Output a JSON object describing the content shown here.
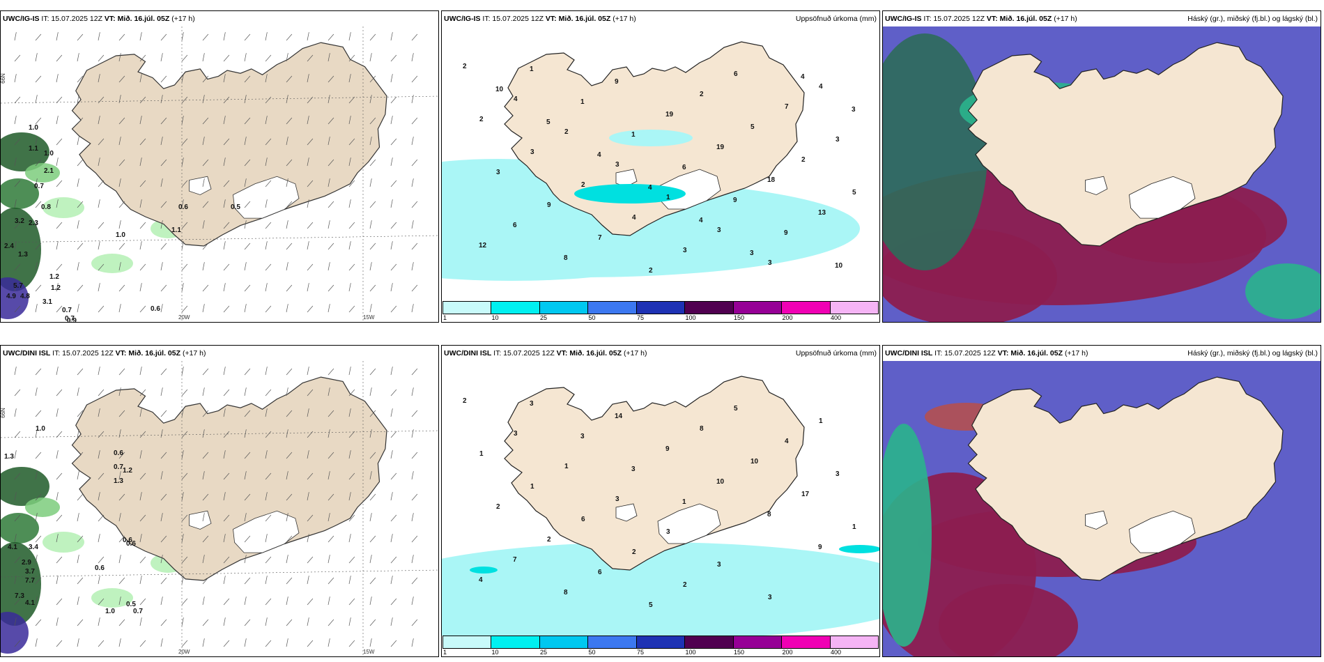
{
  "panels": [
    {
      "model": "UWC/IG-IS",
      "it": "IT: 15.07.2025 12Z",
      "vt_label": "VT:",
      "vt": "Mið. 16.júl. 05Z",
      "lead": "(+17 h)",
      "right": "",
      "kind": "wind"
    },
    {
      "model": "UWC/IG-IS",
      "it": "IT: 15.07.2025 12Z",
      "vt_label": "VT:",
      "vt": "Mið. 16.júl. 05Z",
      "lead": "(+17 h)",
      "right": "Uppsöfnuð úrkoma (mm)",
      "kind": "precip"
    },
    {
      "model": "UWC/IG-IS",
      "it": "IT: 15.07.2025 12Z",
      "vt_label": "VT:",
      "vt": "Mið. 16.júl. 05Z",
      "lead": "(+17 h)",
      "right": "Háský (gr.), miðský (fj.bl.) og lágský (bl.)",
      "kind": "cloud"
    },
    {
      "model": "UWC/DINI ISL",
      "it": "IT: 15.07.2025 12Z",
      "vt_label": "VT:",
      "vt": "Mið. 16.júl. 05Z",
      "lead": "(+17 h)",
      "right": "",
      "kind": "wind"
    },
    {
      "model": "UWC/DINI ISL",
      "it": "IT: 15.07.2025 12Z",
      "vt_label": "VT:",
      "vt": "Mið. 16.júl. 05Z",
      "lead": "(+17 h)",
      "right": "Uppsöfnuð úrkoma (mm)",
      "kind": "precip"
    },
    {
      "model": "UWC/DINI ISL",
      "it": "IT: 15.07.2025 12Z",
      "vt_label": "VT:",
      "vt": "Mið. 16.júl. 05Z",
      "lead": "(+17 h)",
      "right": "Háský (gr.), miðský (fj.bl.) og lágský (bl.)",
      "kind": "cloud"
    }
  ],
  "axis_labels": {
    "lon1": "20W",
    "lon2": "15W",
    "lat1": "66N",
    "lat2": "64N"
  },
  "precip_scale": {
    "labels": [
      "1",
      "10",
      "25",
      "50",
      "75",
      "100",
      "150",
      "200",
      "400"
    ],
    "colors": [
      "#c8fafa",
      "#00f0f0",
      "#00c8f0",
      "#3c78f0",
      "#1e32b4",
      "#500050",
      "#960096",
      "#f000b4",
      "#f5b4f5"
    ]
  },
  "wind_values": {
    "top": [
      "1.0",
      "1.1",
      "1.0",
      "2.1",
      "0.7",
      "0.8",
      "3.2",
      "2.3",
      "1.0",
      "2.4",
      "1.3",
      "1.2",
      "5.7",
      "1.2",
      "4.9",
      "4.8",
      "3.1",
      "0.7",
      "0.9",
      "0.7",
      "0.6",
      "0.6",
      "0.5",
      "1.1"
    ],
    "bottom": [
      "1.0",
      "1.3",
      "0.6",
      "0.7",
      "1.3",
      "1.2",
      "0.6",
      "4.1",
      "3.4",
      "2.9",
      "3.7",
      "7.7",
      "0.6",
      "7.3",
      "4.1",
      "0.6",
      "0.5",
      "1.0",
      "0.7"
    ]
  },
  "precip_values": {
    "top": [
      "2",
      "4",
      "2",
      "3",
      "1",
      "3",
      "3",
      "4",
      "2",
      "3",
      "2",
      "4",
      "3",
      "6",
      "7",
      "3",
      "3",
      "9",
      "7",
      "2",
      "2",
      "5",
      "2",
      "5",
      "6",
      "8",
      "9",
      "19",
      "19",
      "18",
      "13",
      "12",
      "1",
      "1",
      "1",
      "6",
      "9",
      "9",
      "10",
      "10",
      "5",
      "4",
      "4",
      "4",
      "3",
      "4",
      "3"
    ],
    "bottom": [
      "2",
      "3",
      "1",
      "3",
      "3",
      "3",
      "3",
      "1",
      "1",
      "1",
      "6",
      "2",
      "2",
      "5",
      "4",
      "3",
      "2",
      "2",
      "6",
      "5",
      "8",
      "10",
      "17",
      "1",
      "7",
      "8",
      "14",
      "9",
      "10",
      "8",
      "9",
      "4",
      "3",
      "3",
      "3",
      "1"
    ]
  },
  "colors": {
    "land": "#f5e6d2",
    "land_tan": "#e8d9c4",
    "sea_precip": "#aaf6f6",
    "cloud_high": "#5f5fc8",
    "cloud_mid": "#8c1e50",
    "cloud_low": "#2ab48c",
    "green_dark": "#1e5a28",
    "green_light": "#b4f0b4"
  }
}
